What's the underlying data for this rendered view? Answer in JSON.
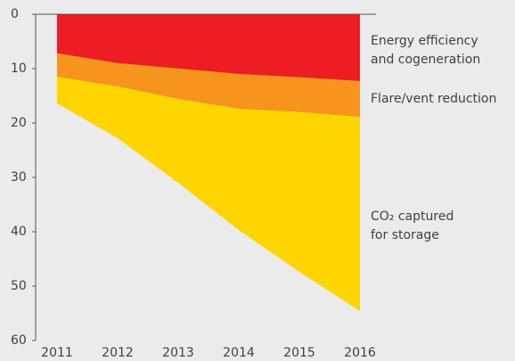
{
  "chart_data": {
    "type": "stacked_area",
    "categories": [
      "2011",
      "2012",
      "2013",
      "2014",
      "2015",
      "2016"
    ],
    "series": [
      {
        "name": "Energy efficiency and cogeneration",
        "color": "#ee1c25",
        "values": [
          7.2,
          9.0,
          10.0,
          11.0,
          11.6,
          12.3
        ]
      },
      {
        "name": "Flare/vent reduction",
        "color": "#f7941d",
        "values": [
          4.3,
          4.3,
          5.6,
          6.4,
          6.4,
          6.6
        ]
      },
      {
        "name": "CO₂ captured for storage",
        "color": "#ffd500",
        "values": [
          4.9,
          9.5,
          15.4,
          22.3,
          29.4,
          35.7
        ]
      }
    ],
    "ylim": [
      0,
      60
    ],
    "yticks": [
      0,
      10,
      20,
      30,
      40,
      50,
      60
    ],
    "y_inverted": true
  }
}
